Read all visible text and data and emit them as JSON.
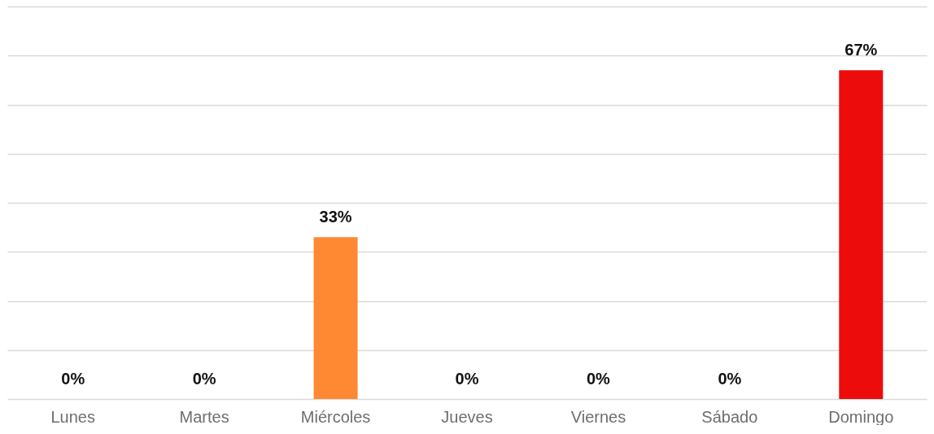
{
  "chart_data": {
    "type": "bar",
    "categories": [
      "Lunes",
      "Martes",
      "Miércoles",
      "Jueves",
      "Viernes",
      "Sábado",
      "Domingo"
    ],
    "values": [
      0,
      0,
      33,
      0,
      0,
      0,
      67
    ],
    "colors": [
      "#ff8833",
      "#ff8833",
      "#ff8833",
      "#ff8833",
      "#ff8833",
      "#ff8833",
      "#ec0c0c"
    ],
    "value_labels": [
      "0%",
      "0%",
      "33%",
      "0%",
      "0%",
      "0%",
      "67%"
    ],
    "ylim": [
      0,
      80
    ],
    "yticks": [
      {
        "value": 0,
        "label": null
      },
      {
        "value": 10,
        "label": null
      },
      {
        "value": 20,
        "label": null
      },
      {
        "value": 30,
        "label": null
      },
      {
        "value": 40,
        "label": null
      },
      {
        "value": 50,
        "label": null
      },
      {
        "value": 60,
        "label": null
      },
      {
        "value": 70,
        "label": null
      },
      {
        "value": 80,
        "label": null
      }
    ],
    "grid": "y",
    "tick_labels": "x"
  }
}
